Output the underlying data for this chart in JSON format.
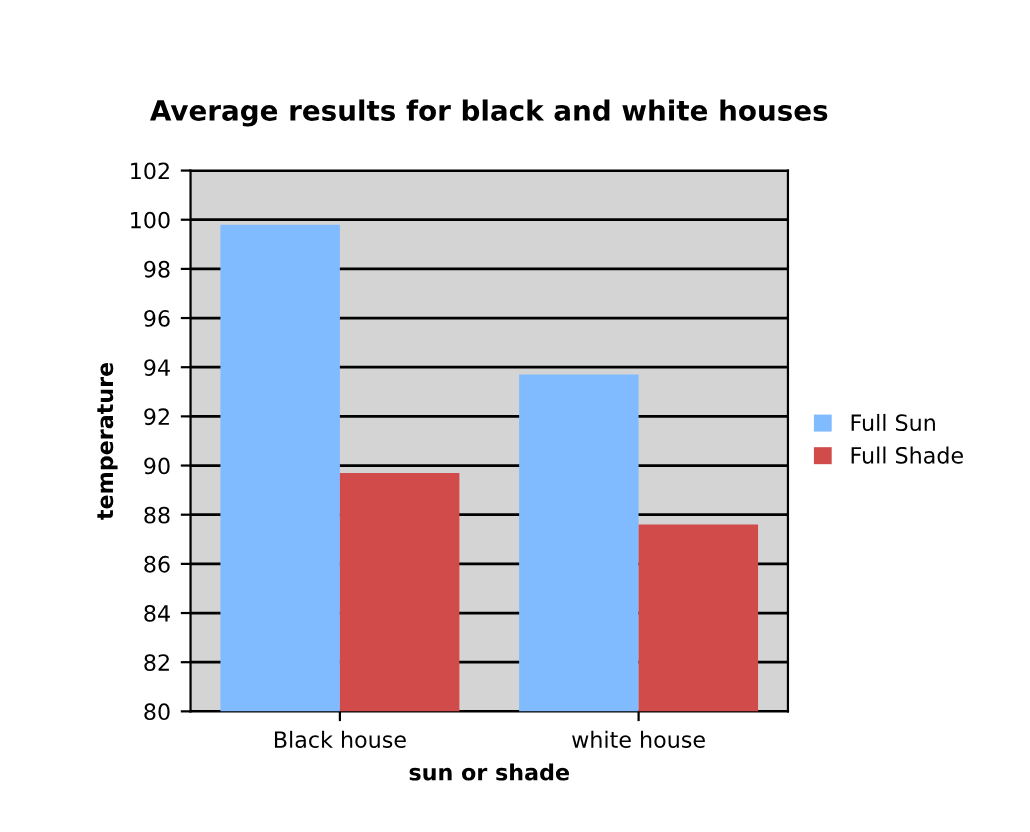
{
  "chart_data": {
    "type": "bar",
    "title": "Average results for black and white houses",
    "xlabel": "sun or shade",
    "ylabel": "temperature",
    "categories": [
      "Black house",
      "white house"
    ],
    "series": [
      {
        "name": "Full Sun",
        "color": "#80bbff",
        "values": [
          99.8,
          93.7
        ]
      },
      {
        "name": "Full Shade",
        "color": "#d24b4b",
        "values": [
          89.7,
          87.6
        ]
      }
    ],
    "ylim": [
      80,
      102
    ],
    "yticks": [
      80,
      82,
      84,
      86,
      88,
      90,
      92,
      94,
      96,
      98,
      100,
      102
    ],
    "grid": "y",
    "legend": "right"
  }
}
